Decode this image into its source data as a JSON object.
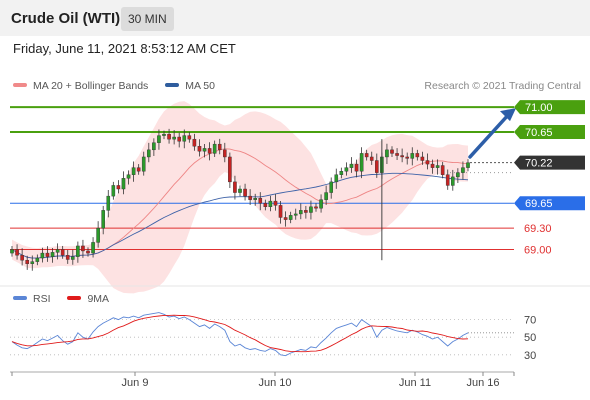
{
  "header": {
    "title": "Crude Oil (WTI)",
    "interval": "30 MIN"
  },
  "timestamp": "Friday, June 11, 2021 8:53:12 AM CET",
  "credit": "Research © 2021 Trading Central",
  "legend": {
    "main": [
      {
        "name": "MA 20 + Bollinger Bands",
        "color": "#f08a8a"
      },
      {
        "name": "MA 50",
        "color": "#2f5d9e"
      }
    ],
    "rsi": [
      {
        "name": "RSI",
        "color": "#5b86d6"
      },
      {
        "name": "9MA",
        "color": "#e01b1b"
      }
    ]
  },
  "chart_data": [
    {
      "type": "candlestick",
      "ylim": [
        68.6,
        71.1
      ],
      "x_ticks": [
        "Jun 9",
        "Jun 10",
        "Jun 11",
        "Jun 16"
      ],
      "price_levels": [
        {
          "label": "71.00",
          "value": 71.0,
          "kind": "resistance",
          "color": "#4aa00f"
        },
        {
          "label": "70.65",
          "value": 70.65,
          "kind": "resistance",
          "color": "#4aa00f"
        },
        {
          "label": "70.22",
          "value": 70.22,
          "kind": "last-price",
          "color": "#333333"
        },
        {
          "label": "69.65",
          "value": 69.65,
          "kind": "pivot",
          "color": "#2a6ee8"
        },
        {
          "label": "69.30",
          "value": 69.3,
          "kind": "support",
          "color": "#e03030"
        },
        {
          "label": "69.00",
          "value": 69.0,
          "kind": "support",
          "color": "#e03030"
        }
      ],
      "close": [
        69.0,
        68.92,
        68.85,
        68.8,
        68.83,
        68.88,
        68.95,
        68.9,
        68.96,
        69.0,
        68.92,
        68.86,
        68.9,
        69.05,
        68.98,
        68.95,
        69.1,
        69.3,
        69.55,
        69.75,
        69.9,
        69.85,
        70.0,
        70.05,
        70.15,
        70.1,
        70.3,
        70.4,
        70.5,
        70.6,
        70.62,
        70.55,
        70.58,
        70.52,
        70.6,
        70.55,
        70.45,
        70.38,
        70.42,
        70.35,
        70.48,
        70.4,
        70.3,
        69.95,
        69.8,
        69.85,
        69.75,
        69.7,
        69.72,
        69.65,
        69.6,
        69.68,
        69.62,
        69.45,
        69.42,
        69.48,
        69.5,
        69.55,
        69.52,
        69.6,
        69.58,
        69.7,
        69.8,
        69.95,
        70.05,
        70.1,
        70.15,
        70.2,
        70.1,
        70.35,
        70.3,
        70.25,
        70.08,
        70.3,
        70.4,
        70.35,
        70.32,
        70.3,
        70.28,
        70.35,
        70.3,
        70.25,
        70.2,
        70.15,
        70.18,
        70.05,
        69.9,
        70.02,
        70.08,
        70.15,
        70.22
      ],
      "targets": [
        71.0
      ]
    },
    {
      "type": "line",
      "name": "RSI",
      "ylim": [
        15,
        90
      ],
      "y_ticks": [
        70,
        50,
        30
      ],
      "series": [
        {
          "name": "RSI",
          "values": [
            45,
            41,
            38,
            37,
            40,
            44,
            48,
            46,
            49,
            52,
            46,
            42,
            45,
            55,
            50,
            48,
            56,
            62,
            66,
            69,
            72,
            70,
            73,
            72,
            74,
            72,
            75,
            76,
            77,
            78,
            76,
            73,
            74,
            71,
            73,
            70,
            66,
            62,
            64,
            60,
            65,
            62,
            58,
            45,
            40,
            42,
            38,
            36,
            37,
            35,
            34,
            37,
            35,
            30,
            29,
            32,
            34,
            36,
            35,
            39,
            38,
            44,
            49,
            55,
            60,
            62,
            64,
            66,
            62,
            70,
            66,
            62,
            50,
            58,
            61,
            59,
            57,
            56,
            55,
            58,
            56,
            53,
            51,
            48,
            50,
            45,
            40,
            45,
            48,
            52,
            55
          ]
        },
        {
          "name": "9MA"
        }
      ]
    }
  ]
}
